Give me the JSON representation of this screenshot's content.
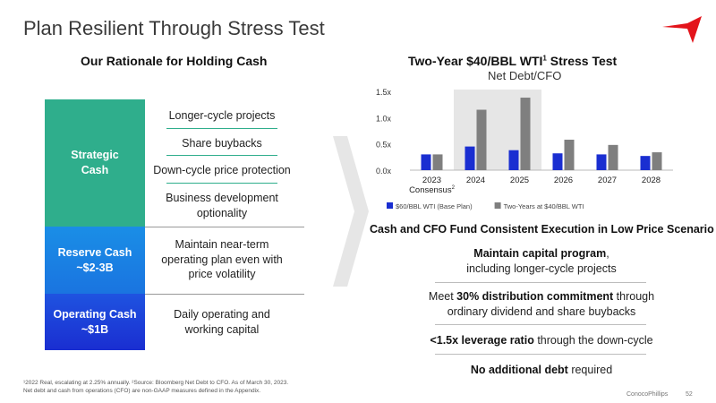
{
  "title": "Plan Resilient Through Stress Test",
  "left": {
    "heading": "Our Rationale for Holding Cash",
    "segments": {
      "strategic": {
        "line1": "Strategic",
        "line2": "Cash"
      },
      "reserve": {
        "line1": "Reserve Cash",
        "line2": "~$2-3B"
      },
      "operating": {
        "line1": "Operating Cash",
        "line2": "~$1B"
      }
    },
    "rationale": {
      "strategic": [
        "Longer-cycle projects",
        "Share buybacks",
        "Down-cycle price protection",
        "Business development optionality"
      ],
      "reserve": "Maintain near-term operating plan even with price volatility",
      "operating": "Daily operating and working capital"
    }
  },
  "right": {
    "heading_main": "Two-Year $40/BBL WTI",
    "heading_sup": "1",
    "heading_tail": "Stress Test",
    "subheading": "Net Debt/CFO",
    "section_heading": "Cash and CFO Fund Consistent Execution in Low Price Scenario",
    "bullets": {
      "b1_bold": "Maintain capital program",
      "b1_rest": ",",
      "b1_line2": "including longer-cycle projects",
      "b2_pre": "Meet ",
      "b2_bold": "30% distribution commitment",
      "b2_post": " through",
      "b2_line2": "ordinary dividend and share buybacks",
      "b3_bold": "<1.5x leverage ratio",
      "b3_post": " through the down-cycle",
      "b4_bold": "No additional debt",
      "b4_post": " required"
    }
  },
  "chart_data": {
    "type": "bar",
    "categories": [
      "2023",
      "2024",
      "2025",
      "2026",
      "2027",
      "2028"
    ],
    "category_sublabel": {
      "2023": "Consensus",
      "2023_sup": "2"
    },
    "series": [
      {
        "name": "$60/BBL WTI (Base Plan)",
        "color": "#1a2ed1",
        "values": [
          0.3,
          0.45,
          0.38,
          0.32,
          0.3,
          0.27
        ]
      },
      {
        "name": "Two-Years at $40/BBL WTI",
        "color": "#7f7f7f",
        "values": [
          0.3,
          1.15,
          1.38,
          0.58,
          0.48,
          0.34
        ]
      }
    ],
    "yticks": [
      "0.0x",
      "0.5x",
      "1.0x",
      "1.5x"
    ],
    "ylim": [
      0,
      1.5
    ],
    "highlight": [
      "2024",
      "2025"
    ],
    "grid": false,
    "legend_position": "bottom"
  },
  "footnote": {
    "line1": "¹2022 Real, escalating at 2.25% annually. ²Source: Bloomberg Net Debt to CFO. As of March 30, 2023.",
    "line2": "Net debt and cash from operations (CFO) are non-GAAP measures defined in the Appendix."
  },
  "brand": "ConocoPhillips",
  "page_number": "52",
  "colors": {
    "strategic": "#2fae8c",
    "reserve": "#1a8ee6",
    "operating": "#1a2ed1",
    "logo": "#e3141b"
  }
}
